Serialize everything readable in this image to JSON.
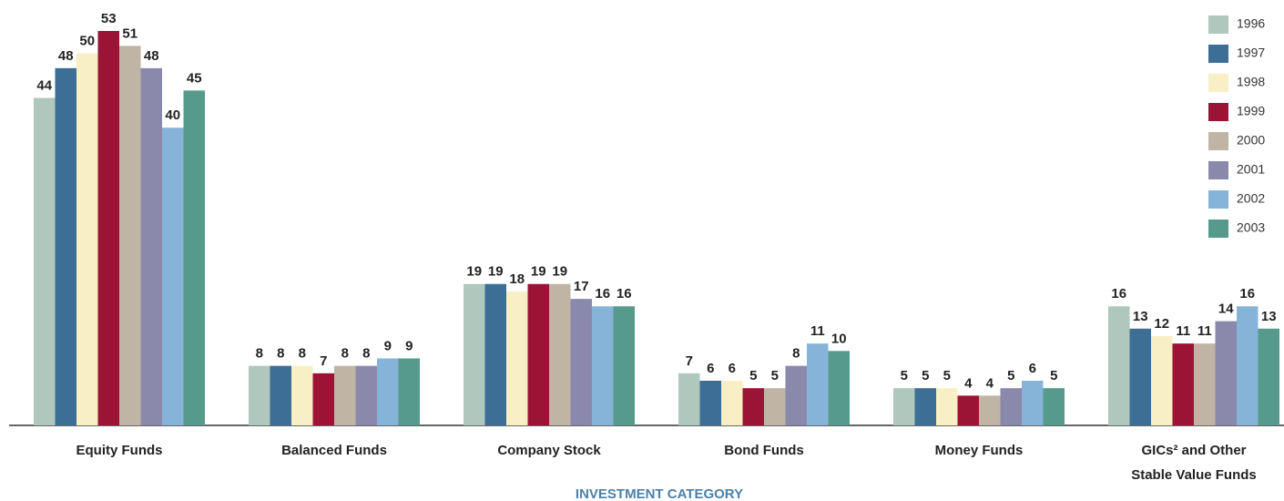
{
  "chart_data": {
    "type": "bar",
    "x_label": "INVESTMENT CATEGORY",
    "categories": [
      "Equity Funds",
      "Balanced Funds",
      "Company Stock",
      "Bond Funds",
      "Money Funds",
      "GICs² and Other\nStable Value Funds"
    ],
    "series": [
      {
        "name": "1996",
        "color": "#b0c7bd",
        "values": [
          44,
          8,
          19,
          7,
          5,
          16
        ]
      },
      {
        "name": "1997",
        "color": "#3d6e96",
        "values": [
          48,
          8,
          19,
          6,
          5,
          13
        ]
      },
      {
        "name": "1998",
        "color": "#f8f0c4",
        "values": [
          50,
          8,
          18,
          6,
          5,
          12
        ]
      },
      {
        "name": "1999",
        "color": "#9b1436",
        "values": [
          53,
          7,
          19,
          5,
          4,
          11
        ]
      },
      {
        "name": "2000",
        "color": "#c0b5a5",
        "values": [
          51,
          8,
          19,
          5,
          4,
          11
        ]
      },
      {
        "name": "2001",
        "color": "#8a89ac",
        "values": [
          48,
          8,
          17,
          8,
          5,
          14
        ]
      },
      {
        "name": "2002",
        "color": "#86b4d8",
        "values": [
          40,
          9,
          16,
          11,
          6,
          16
        ]
      },
      {
        "name": "2003",
        "color": "#559a8a",
        "values": [
          45,
          9,
          16,
          10,
          5,
          13
        ]
      }
    ],
    "legend": "top-right"
  }
}
